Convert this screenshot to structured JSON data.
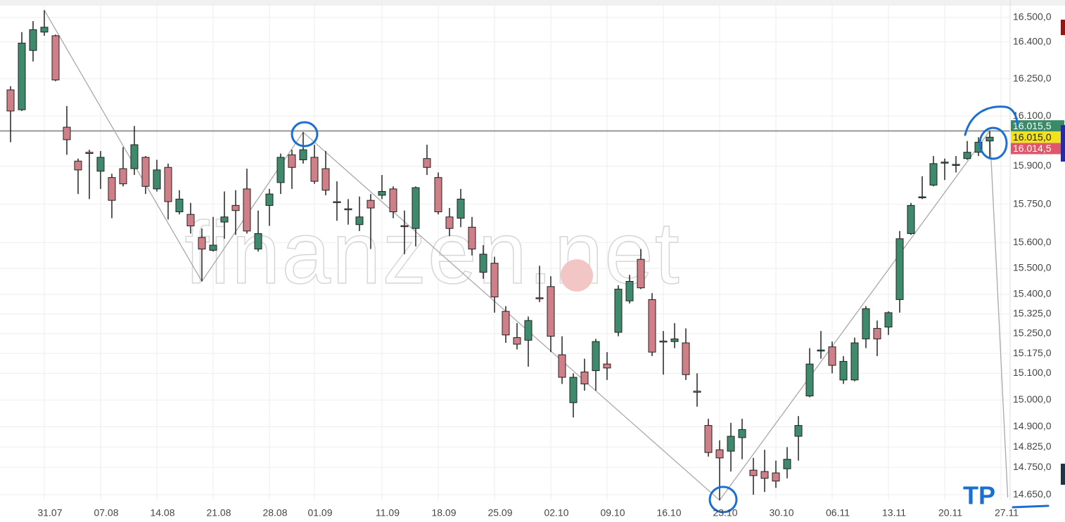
{
  "chart_data": {
    "type": "candlestick",
    "log_scale": true,
    "grid": true,
    "up_color": "#3f8a6c",
    "down_color": "#cf7f88",
    "watermark": "finanzen.net",
    "annotation": "TP",
    "categories": [
      null,
      null,
      null,
      "31.07",
      null,
      null,
      null,
      null,
      "07.08",
      null,
      null,
      null,
      null,
      "14.08",
      null,
      null,
      null,
      null,
      "21.08",
      null,
      null,
      null,
      null,
      "28.08",
      null,
      null,
      null,
      "01.09",
      null,
      null,
      null,
      null,
      null,
      "11.09",
      null,
      null,
      null,
      null,
      "18.09",
      null,
      null,
      null,
      null,
      "25.09",
      null,
      null,
      null,
      null,
      "02.10",
      null,
      null,
      null,
      null,
      "09.10",
      null,
      null,
      null,
      null,
      "16.10",
      null,
      null,
      null,
      null,
      "23.10",
      null,
      null,
      null,
      null,
      "30.10",
      null,
      null,
      null,
      null,
      "06.11",
      null,
      null,
      null,
      null,
      "13.11",
      null,
      null,
      null,
      null,
      "20.11",
      null,
      null,
      null,
      null,
      "27.11"
    ],
    "open": [
      16205,
      16125,
      16365,
      16440,
      16425,
      16055,
      15920,
      15955,
      15880,
      15855,
      15890,
      15890,
      15935,
      15810,
      15895,
      15720,
      15710,
      15620,
      15570,
      15680,
      15745,
      15810,
      15575,
      15745,
      15835,
      15945,
      15925,
      15935,
      15890,
      15760,
      15732,
      15670,
      15765,
      15785,
      15810,
      15666,
      15655,
      15930,
      15855,
      15700,
      15695,
      15660,
      15485,
      15520,
      15335,
      15235,
      15225,
      15387,
      15430,
      15170,
      14990,
      15105,
      15110,
      15135,
      15255,
      15375,
      15535,
      15380,
      15222,
      15220,
      15215,
      15033,
      14905,
      14815,
      14810,
      14860,
      14740,
      14735,
      14730,
      14745,
      14865,
      15015,
      15184,
      15200,
      15075,
      15075,
      15230,
      15270,
      15275,
      15380,
      15635,
      15775,
      15825,
      15912,
      15903,
      15930,
      15955,
      16000,
      null
    ],
    "high": [
      16220,
      16440,
      16485,
      16530,
      16430,
      16140,
      15930,
      15965,
      15960,
      15870,
      15975,
      16060,
      15940,
      15925,
      15910,
      15805,
      15755,
      15655,
      15700,
      15800,
      15805,
      15890,
      15725,
      15810,
      15950,
      15965,
      16035,
      15985,
      15960,
      15840,
      15770,
      15780,
      15790,
      15865,
      15820,
      15725,
      15820,
      15985,
      15875,
      15735,
      15810,
      15700,
      15590,
      15545,
      15355,
      15290,
      15315,
      15510,
      15470,
      15240,
      15100,
      15155,
      15230,
      15180,
      15435,
      15475,
      15575,
      15405,
      15260,
      15290,
      15270,
      15100,
      14930,
      14850,
      14915,
      14930,
      14785,
      14815,
      14775,
      14825,
      14940,
      15195,
      15260,
      15220,
      15165,
      15235,
      15355,
      15300,
      15335,
      15645,
      15755,
      15860,
      15940,
      15930,
      15940,
      16000,
      16015,
      16040,
      null
    ],
    "low": [
      15995,
      16120,
      16320,
      16425,
      16240,
      15945,
      15790,
      15770,
      15810,
      15695,
      15820,
      15865,
      15790,
      15800,
      15690,
      15710,
      15635,
      15450,
      15565,
      15615,
      15630,
      15635,
      15565,
      15665,
      15790,
      15810,
      15910,
      15830,
      15785,
      15685,
      15670,
      15645,
      15575,
      15770,
      15695,
      15555,
      15585,
      15865,
      15710,
      15625,
      15660,
      15550,
      15460,
      15330,
      15215,
      15190,
      15125,
      15370,
      15180,
      15060,
      14935,
      15035,
      15035,
      15075,
      15240,
      15365,
      15420,
      15165,
      15095,
      15195,
      15075,
      14975,
      14790,
      14630,
      14735,
      14780,
      14650,
      14660,
      14675,
      14710,
      14775,
      15010,
      15155,
      15100,
      15060,
      15070,
      15195,
      15165,
      15245,
      15330,
      15630,
      15770,
      15820,
      15845,
      15875,
      15925,
      15940,
      15930,
      null
    ],
    "close": [
      16120,
      16395,
      16450,
      16460,
      16245,
      16005,
      15885,
      15950,
      15935,
      15765,
      15830,
      15985,
      15820,
      15885,
      15760,
      15770,
      15665,
      15575,
      15590,
      15700,
      15725,
      15645,
      15635,
      15790,
      15935,
      15895,
      15965,
      15840,
      15805,
      15757,
      15728,
      15700,
      15735,
      15800,
      15720,
      15662,
      15815,
      15895,
      15720,
      15655,
      15770,
      15575,
      15555,
      15390,
      15245,
      15210,
      15300,
      15384,
      15240,
      15085,
      15085,
      15060,
      15220,
      15120,
      15420,
      15450,
      15425,
      15180,
      15218,
      15230,
      15095,
      15029,
      14805,
      14785,
      14865,
      14890,
      14720,
      14710,
      14700,
      14780,
      14905,
      15135,
      15188,
      15130,
      15145,
      15215,
      15345,
      15230,
      15330,
      15615,
      15745,
      15779,
      15910,
      15916,
      15907,
      15955,
      15995,
      16015,
      null
    ],
    "zigzag": [
      {
        "x": 3,
        "y": 16530
      },
      {
        "x": 17,
        "y": 15450
      },
      {
        "x": 26,
        "y": 16035
      },
      {
        "x": 63,
        "y": 14630
      },
      {
        "x": 87,
        "y": 16040
      },
      {
        "x": 88.6,
        "y": 14640
      }
    ],
    "reference_line": 16040,
    "price_tags": [
      {
        "value": 16015.5,
        "label": "16.015,5",
        "color": "#3a8a68",
        "text_color": "#ffffff"
      },
      {
        "value": 16015,
        "label": "16.015,0",
        "color": "#f2e21c",
        "text_color": "#222222"
      },
      {
        "value": 16014.5,
        "label": "16.014,5",
        "color": "#e0566a",
        "text_color": "#ffffff"
      }
    ],
    "ylim": [
      14630,
      16572
    ],
    "yticks": [
      {
        "value": 16500,
        "label": "16.500,0"
      },
      {
        "value": 16400,
        "label": "16.400,0"
      },
      {
        "value": 16250,
        "label": "16.250,0"
      },
      {
        "value": 16100,
        "label": "16.100,0"
      },
      {
        "value": 15900,
        "label": "15.900,0"
      },
      {
        "value": 15750,
        "label": "15.750,0"
      },
      {
        "value": 15600,
        "label": "15.600,0"
      },
      {
        "value": 15500,
        "label": "15.500,0"
      },
      {
        "value": 15400,
        "label": "15.400,0"
      },
      {
        "value": 15325,
        "label": "15.325,0"
      },
      {
        "value": 15250,
        "label": "15.250,0"
      },
      {
        "value": 15175,
        "label": "15.175,0"
      },
      {
        "value": 15100,
        "label": "15.100,0"
      },
      {
        "value": 15000,
        "label": "15.000,0"
      },
      {
        "value": 14900,
        "label": "14.900,0"
      },
      {
        "value": 14825,
        "label": "14.825,0"
      },
      {
        "value": 14750,
        "label": "14.750,0"
      },
      {
        "value": 14650,
        "label": "14.650,0"
      }
    ]
  }
}
